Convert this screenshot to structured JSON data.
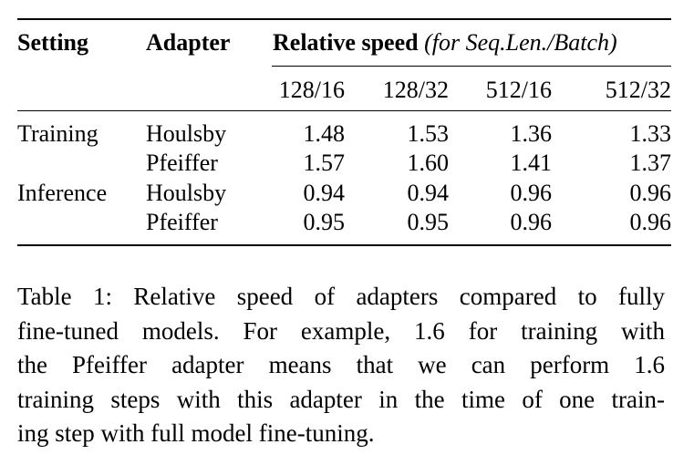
{
  "table": {
    "headers": {
      "setting": "Setting",
      "adapter": "Adapter",
      "relative_speed": "Relative speed",
      "relative_speed_note": "(for Seq.Len./Batch)",
      "columns": [
        "128/16",
        "128/32",
        "512/16",
        "512/32"
      ]
    },
    "rows": [
      {
        "setting": "Training",
        "adapter": "Houlsby",
        "values": [
          "1.48",
          "1.53",
          "1.36",
          "1.33"
        ]
      },
      {
        "setting": "",
        "adapter": "Pfeiffer",
        "values": [
          "1.57",
          "1.60",
          "1.41",
          "1.37"
        ]
      },
      {
        "setting": "Inference",
        "adapter": "Houlsby",
        "values": [
          "0.94",
          "0.94",
          "0.96",
          "0.96"
        ]
      },
      {
        "setting": "",
        "adapter": "Pfeiffer",
        "values": [
          "0.95",
          "0.95",
          "0.96",
          "0.96"
        ]
      }
    ]
  },
  "caption": {
    "lines": [
      "Table 1: Relative speed of adapters compared to fully",
      "fine-tuned models. For example, 1.6 for training with",
      "the Pfeiffer adapter means that we can perform 1.6",
      "training steps with this adapter in the time of one train-",
      "ing step with full model fine-tuning."
    ]
  }
}
